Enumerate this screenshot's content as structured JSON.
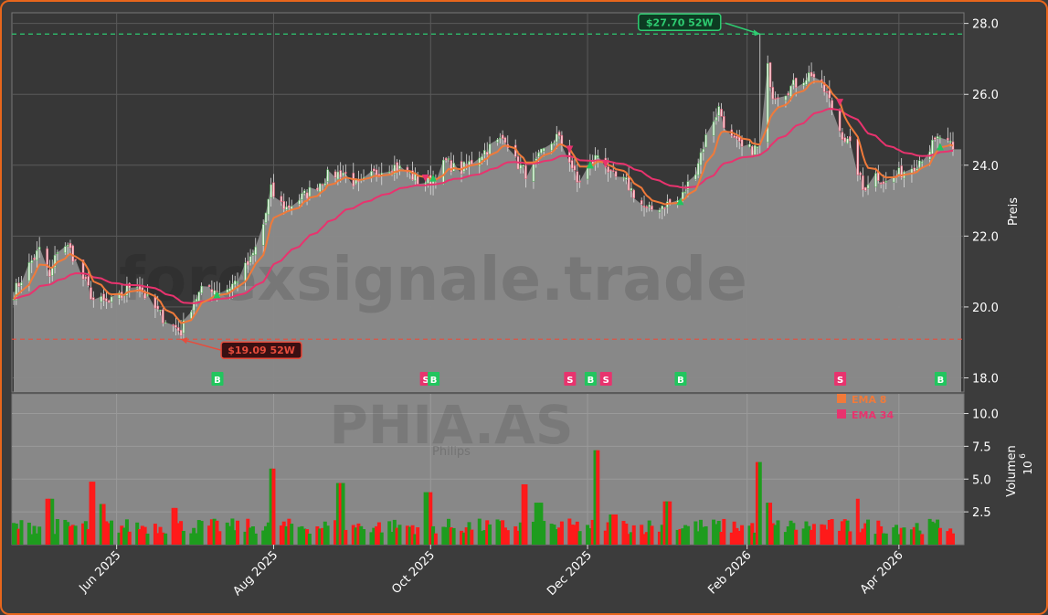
{
  "chart_data": {
    "type": "candlestick",
    "watermark": "forexsignale.trade",
    "ticker": "PHIA.AS",
    "company": "Philips",
    "price_axis": {
      "label": "Preis",
      "ylim": [
        17.6,
        28.3
      ],
      "ticks": [
        "18.0",
        "20.0",
        "22.0",
        "24.0",
        "26.0",
        "28.0"
      ]
    },
    "volume_axis": {
      "label": "Volumen",
      "exponent": "10",
      "exponent_power": "6",
      "ylim": [
        0,
        11.5
      ],
      "ticks": [
        "2.5",
        "5.0",
        "7.5",
        "10.0"
      ]
    },
    "x_axis": {
      "ticks": [
        "Jun 2025",
        "Aug 2025",
        "Oct 2025",
        "Dec 2025",
        "Feb 2026",
        "Apr 2026"
      ],
      "tick_dates": [
        "2025-06-01",
        "2025-08-01",
        "2025-10-01",
        "2025-12-01",
        "2026-02-01",
        "2026-04-01"
      ],
      "range": [
        "2025-04-22",
        "2026-04-22"
      ]
    },
    "high_52w": {
      "label": "$27.70 52W",
      "value": 27.7,
      "date": "2026-02-06",
      "color": "#2ecc71"
    },
    "low_52w": {
      "label": "$19.09 52W",
      "value": 19.09,
      "date": "2025-06-26",
      "color": "#e74c3c"
    },
    "legend": [
      {
        "label": "EMA 8",
        "color": "#f07a3a"
      },
      {
        "label": "EMA 34",
        "color": "#e8336e"
      }
    ],
    "close_anchors": [
      [
        "2025-04-22",
        20.4
      ],
      [
        "2025-04-29",
        21.3
      ],
      [
        "2025-05-03",
        21.7
      ],
      [
        "2025-05-06",
        20.8
      ],
      [
        "2025-05-10",
        21.9
      ],
      [
        "2025-05-14",
        21.6
      ],
      [
        "2025-05-19",
        20.8
      ],
      [
        "2025-05-23",
        20.2
      ],
      [
        "2025-05-29",
        20.1
      ],
      [
        "2025-06-03",
        20.3
      ],
      [
        "2025-06-08",
        20.8
      ],
      [
        "2025-06-13",
        20.2
      ],
      [
        "2025-06-19",
        19.7
      ],
      [
        "2025-06-26",
        19.3
      ],
      [
        "2025-07-01",
        20.2
      ],
      [
        "2025-07-06",
        20.6
      ],
      [
        "2025-07-12",
        20.4
      ],
      [
        "2025-07-17",
        20.7
      ],
      [
        "2025-07-23",
        21.3
      ],
      [
        "2025-07-27",
        22.0
      ],
      [
        "2025-07-31",
        23.3
      ],
      [
        "2025-08-02",
        23.0
      ],
      [
        "2025-08-06",
        22.8
      ],
      [
        "2025-08-14",
        23.2
      ],
      [
        "2025-08-22",
        23.7
      ],
      [
        "2025-08-28",
        23.8
      ],
      [
        "2025-09-03",
        23.4
      ],
      [
        "2025-09-10",
        23.8
      ],
      [
        "2025-09-16",
        24.0
      ],
      [
        "2025-09-22",
        23.8
      ],
      [
        "2025-09-27",
        23.5
      ],
      [
        "2025-10-02",
        23.6
      ],
      [
        "2025-10-07",
        24.1
      ],
      [
        "2025-10-12",
        23.8
      ],
      [
        "2025-10-20",
        24.3
      ],
      [
        "2025-10-30",
        24.8
      ],
      [
        "2025-11-03",
        24.1
      ],
      [
        "2025-11-08",
        23.7
      ],
      [
        "2025-11-13",
        24.3
      ],
      [
        "2025-11-19",
        24.8
      ],
      [
        "2025-11-23",
        24.4
      ],
      [
        "2025-11-27",
        23.5
      ],
      [
        "2025-12-02",
        24.0
      ],
      [
        "2025-12-06",
        24.4
      ],
      [
        "2025-12-10",
        23.7
      ],
      [
        "2025-12-16",
        23.5
      ],
      [
        "2025-12-24",
        22.7
      ],
      [
        "2025-12-31",
        22.9
      ],
      [
        "2026-01-06",
        23.0
      ],
      [
        "2026-01-12",
        23.9
      ],
      [
        "2026-01-17",
        25.0
      ],
      [
        "2026-01-21",
        25.6
      ],
      [
        "2026-01-25",
        24.8
      ],
      [
        "2026-01-31",
        24.4
      ],
      [
        "2026-02-06",
        24.5
      ],
      [
        "2026-02-08",
        27.1
      ],
      [
        "2026-02-11",
        26.0
      ],
      [
        "2026-02-16",
        26.1
      ],
      [
        "2026-02-22",
        26.4
      ],
      [
        "2026-02-26",
        26.6
      ],
      [
        "2026-03-04",
        26.0
      ],
      [
        "2026-03-09",
        25.0
      ],
      [
        "2026-03-14",
        24.4
      ],
      [
        "2026-03-18",
        23.3
      ],
      [
        "2026-03-22",
        23.8
      ],
      [
        "2026-03-27",
        23.5
      ],
      [
        "2026-04-02",
        23.8
      ],
      [
        "2026-04-07",
        24.0
      ],
      [
        "2026-04-12",
        24.4
      ],
      [
        "2026-04-17",
        24.8
      ],
      [
        "2026-04-22",
        24.45
      ]
    ],
    "signals": [
      {
        "type": "B",
        "date": "2025-07-10"
      },
      {
        "type": "S",
        "date": "2025-09-27"
      },
      {
        "type": "B",
        "date": "2025-10-02"
      },
      {
        "type": "S",
        "date": "2025-11-23"
      },
      {
        "type": "B",
        "date": "2025-12-02"
      },
      {
        "type": "S",
        "date": "2025-12-06"
      },
      {
        "type": "B",
        "date": "2026-01-06"
      },
      {
        "type": "S",
        "date": "2026-03-09"
      },
      {
        "type": "B",
        "date": "2026-04-17"
      }
    ],
    "volume_spikes": [
      [
        "2025-05-06",
        3.5
      ],
      [
        "2025-05-23",
        4.8
      ],
      [
        "2025-05-26",
        3.1
      ],
      [
        "2025-06-23",
        2.8
      ],
      [
        "2025-08-01",
        5.8
      ],
      [
        "2025-08-27",
        4.7
      ],
      [
        "2025-09-30",
        4.0
      ],
      [
        "2025-11-07",
        4.6
      ],
      [
        "2025-11-12",
        3.2
      ],
      [
        "2025-12-05",
        7.2
      ],
      [
        "2025-12-11",
        2.3
      ],
      [
        "2026-01-01",
        3.3
      ],
      [
        "2026-02-06",
        6.3
      ],
      [
        "2026-02-09",
        3.2
      ],
      [
        "2026-03-15",
        3.5
      ]
    ],
    "grid": true
  }
}
